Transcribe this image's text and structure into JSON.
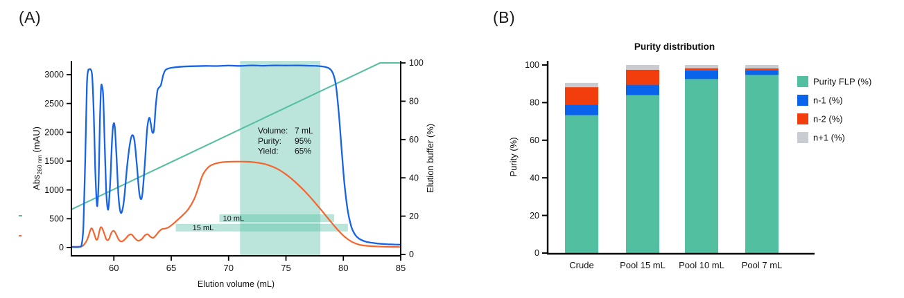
{
  "panel_a": {
    "label": "(A)"
  },
  "panel_b": {
    "label": "(B)"
  },
  "chart_data": [
    {
      "id": "elution_profile",
      "type": "line",
      "xlabel": "Elution volume (mL)",
      "ylabel_left_parts": {
        "base": "Abs",
        "sub": "260 nm",
        "rest": " (mAU)"
      },
      "ylabel_right": "Elution buffer (%)",
      "x_range": [
        56.3,
        85
      ],
      "x_ticks": [
        60,
        65,
        70,
        75,
        80,
        85
      ],
      "y_left_ticks": [
        0,
        500,
        1000,
        1500,
        2000,
        2500,
        3000
      ],
      "y_right_ticks": [
        0,
        20,
        40,
        60,
        80,
        100
      ],
      "y_left_label_unit": "mAU",
      "y_right_label_unit": "%",
      "grid": false,
      "pool_region": {
        "x0": 71.0,
        "x1": 78.0,
        "color": "rgba(77,187,160,0.38)"
      },
      "pool_bars": [
        {
          "label": "10 mL",
          "x0": 69.2,
          "x1": 79.2,
          "y_mAU": 510,
          "color": "rgba(77,187,160,0.38)"
        },
        {
          "label": "15 mL",
          "x0": 65.4,
          "x1": 80.4,
          "y_mAU": 345,
          "color": "rgba(77,187,160,0.38)"
        }
      ],
      "annotation": {
        "rows": [
          {
            "label": "Volume:",
            "value": "7 mL"
          },
          {
            "label": "Purity:",
            "value": "95%"
          },
          {
            "label": "Yield:",
            "value": "65%"
          }
        ]
      },
      "stray_marks": [
        {
          "color": "#57bfa3",
          "x": 27,
          "y": 311,
          "w": 5,
          "h": 2
        },
        {
          "color": "#f4652f",
          "x": 27,
          "y": 340,
          "w": 4,
          "h": 2
        }
      ],
      "series": [
        {
          "name": "elution-buffer-gradient",
          "axis": "right",
          "color": "#57bfa3",
          "width": 2.1,
          "smooth": false,
          "points": [
            [
              56.3,
              23.5
            ],
            [
              83.2,
              100
            ],
            [
              85,
              100
            ]
          ]
        },
        {
          "name": "impurity-trace-abs",
          "axis": "left",
          "color": "#f4652f",
          "width": 2.2,
          "smooth": true,
          "points": [
            [
              56.3,
              15
            ],
            [
              57.1,
              18
            ],
            [
              57.4,
              50
            ],
            [
              57.7,
              150
            ],
            [
              57.95,
              300
            ],
            [
              58.1,
              330
            ],
            [
              58.3,
              230
            ],
            [
              58.45,
              140
            ],
            [
              58.6,
              160
            ],
            [
              58.8,
              330
            ],
            [
              58.95,
              345
            ],
            [
              59.15,
              250
            ],
            [
              59.35,
              140
            ],
            [
              59.55,
              140
            ],
            [
              59.8,
              260
            ],
            [
              60.0,
              290
            ],
            [
              60.2,
              230
            ],
            [
              60.45,
              130
            ],
            [
              60.7,
              105
            ],
            [
              61.0,
              150
            ],
            [
              61.3,
              215
            ],
            [
              61.55,
              225
            ],
            [
              61.8,
              170
            ],
            [
              62.1,
              120
            ],
            [
              62.4,
              140
            ],
            [
              62.7,
              210
            ],
            [
              62.95,
              230
            ],
            [
              63.2,
              185
            ],
            [
              63.45,
              170
            ],
            [
              63.7,
              220
            ],
            [
              63.95,
              280
            ],
            [
              64.2,
              320
            ],
            [
              64.5,
              330
            ],
            [
              64.8,
              355
            ],
            [
              65.1,
              400
            ],
            [
              65.5,
              470
            ],
            [
              66.0,
              560
            ],
            [
              66.5,
              670
            ],
            [
              67.0,
              840
            ],
            [
              67.4,
              1060
            ],
            [
              67.7,
              1240
            ],
            [
              68.0,
              1340
            ],
            [
              68.4,
              1420
            ],
            [
              68.9,
              1460
            ],
            [
              69.5,
              1482
            ],
            [
              70.2,
              1490
            ],
            [
              71.0,
              1492
            ],
            [
              71.8,
              1488
            ],
            [
              72.6,
              1470
            ],
            [
              73.4,
              1435
            ],
            [
              74.2,
              1370
            ],
            [
              75.0,
              1270
            ],
            [
              75.8,
              1140
            ],
            [
              76.6,
              985
            ],
            [
              77.4,
              810
            ],
            [
              78.2,
              620
            ],
            [
              78.9,
              450
            ],
            [
              79.5,
              310
            ],
            [
              80.1,
              190
            ],
            [
              80.7,
              105
            ],
            [
              81.3,
              55
            ],
            [
              82.0,
              30
            ],
            [
              83.0,
              18
            ],
            [
              84.0,
              12
            ],
            [
              85.0,
              10
            ]
          ]
        },
        {
          "name": "absorbance-260nm",
          "axis": "left",
          "color": "#1663e8",
          "width": 2.3,
          "smooth": true,
          "points": [
            [
              56.3,
              8
            ],
            [
              57.0,
              10
            ],
            [
              57.2,
              60
            ],
            [
              57.35,
              400
            ],
            [
              57.5,
              1500
            ],
            [
              57.65,
              2800
            ],
            [
              57.75,
              3060
            ],
            [
              57.85,
              3090
            ],
            [
              58.0,
              3085
            ],
            [
              58.12,
              2950
            ],
            [
              58.25,
              2300
            ],
            [
              58.38,
              1350
            ],
            [
              58.5,
              800
            ],
            [
              58.58,
              760
            ],
            [
              58.68,
              1200
            ],
            [
              58.78,
              2150
            ],
            [
              58.88,
              2760
            ],
            [
              58.97,
              2800
            ],
            [
              59.08,
              2600
            ],
            [
              59.2,
              1800
            ],
            [
              59.33,
              1000
            ],
            [
              59.45,
              690
            ],
            [
              59.55,
              720
            ],
            [
              59.7,
              1200
            ],
            [
              59.85,
              1900
            ],
            [
              59.98,
              2150
            ],
            [
              60.1,
              2050
            ],
            [
              60.25,
              1500
            ],
            [
              60.4,
              900
            ],
            [
              60.55,
              640
            ],
            [
              60.7,
              620
            ],
            [
              60.9,
              850
            ],
            [
              61.15,
              1400
            ],
            [
              61.4,
              1800
            ],
            [
              61.6,
              1950
            ],
            [
              61.8,
              1850
            ],
            [
              62.0,
              1450
            ],
            [
              62.2,
              980
            ],
            [
              62.35,
              840
            ],
            [
              62.5,
              950
            ],
            [
              62.7,
              1450
            ],
            [
              62.9,
              2050
            ],
            [
              63.08,
              2250
            ],
            [
              63.22,
              2150
            ],
            [
              63.35,
              2000
            ],
            [
              63.5,
              2050
            ],
            [
              63.65,
              2450
            ],
            [
              63.8,
              2720
            ],
            [
              63.95,
              2780
            ],
            [
              64.1,
              2820
            ],
            [
              64.3,
              2990
            ],
            [
              64.5,
              3080
            ],
            [
              64.8,
              3110
            ],
            [
              65.2,
              3125
            ],
            [
              66.0,
              3140
            ],
            [
              67.0,
              3148
            ],
            [
              68.0,
              3152
            ],
            [
              69.0,
              3150
            ],
            [
              70.0,
              3158
            ],
            [
              71.0,
              3152
            ],
            [
              72.0,
              3160
            ],
            [
              73.0,
              3155
            ],
            [
              74.0,
              3160
            ],
            [
              75.0,
              3158
            ],
            [
              76.0,
              3160
            ],
            [
              77.0,
              3155
            ],
            [
              77.8,
              3150
            ],
            [
              78.4,
              3135
            ],
            [
              78.8,
              3105
            ],
            [
              79.1,
              3020
            ],
            [
              79.35,
              2820
            ],
            [
              79.6,
              2350
            ],
            [
              79.85,
              1700
            ],
            [
              80.1,
              1100
            ],
            [
              80.4,
              620
            ],
            [
              80.7,
              360
            ],
            [
              81.0,
              230
            ],
            [
              81.4,
              150
            ],
            [
              82.0,
              100
            ],
            [
              82.8,
              75
            ],
            [
              83.6,
              60
            ],
            [
              84.5,
              52
            ],
            [
              85.0,
              50
            ]
          ]
        }
      ]
    },
    {
      "id": "purity_distribution",
      "type": "stacked_bar",
      "title": "Purity distribution",
      "ylabel": "Purity (%)",
      "ylim": [
        0,
        100
      ],
      "y_ticks": [
        0,
        20,
        40,
        60,
        80,
        100
      ],
      "categories": [
        "Crude",
        "Pool 15 mL",
        "Pool 10 mL",
        "Pool 7 mL"
      ],
      "series": [
        {
          "name": "Purity FLP (%)",
          "color": "#53bfa1",
          "values": [
            73.3,
            84.0,
            92.5,
            94.7
          ]
        },
        {
          "name": "n-1 (%)",
          "color": "#0a64eb",
          "values": [
            5.7,
            5.5,
            4.6,
            2.6
          ]
        },
        {
          "name": "n-2 (%)",
          "color": "#f23d0c",
          "values": [
            9.2,
            8.0,
            1.2,
            0.9
          ]
        },
        {
          "name": "n+1 (%)",
          "color": "#c9cdd2",
          "values": [
            2.3,
            2.5,
            1.7,
            1.8
          ]
        }
      ],
      "legend_position": "right",
      "grid": false
    }
  ]
}
